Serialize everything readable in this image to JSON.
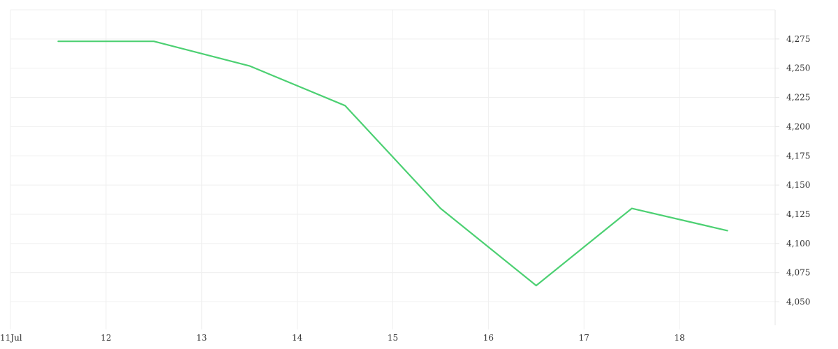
{
  "chart_data": {
    "type": "line",
    "x": [
      "2024-07-11T12:00",
      "2024-07-12T12:00",
      "2024-07-13T12:00",
      "2024-07-14T12:00",
      "2024-07-15T12:00",
      "2024-07-16T12:00",
      "2024-07-17T12:00",
      "2024-07-18T12:00"
    ],
    "series": [
      {
        "values": [
          4273,
          4273,
          4252,
          4218,
          4130,
          4064,
          4130,
          4111
        ],
        "color": "#4cd072"
      }
    ],
    "x_ticks": [
      "11Jul",
      "12",
      "13",
      "14",
      "15",
      "16",
      "17",
      "18"
    ],
    "xlim": [
      "2024-07-11",
      "2024-07-19"
    ],
    "y_ticks": [
      "4,050",
      "4,075",
      "4,100",
      "4,125",
      "4,150",
      "4,175",
      "4,200",
      "4,225",
      "4,250",
      "4,275"
    ],
    "ylim": [
      4030,
      4300
    ],
    "y_axis_side": "right",
    "grid": true,
    "legend": "none"
  }
}
